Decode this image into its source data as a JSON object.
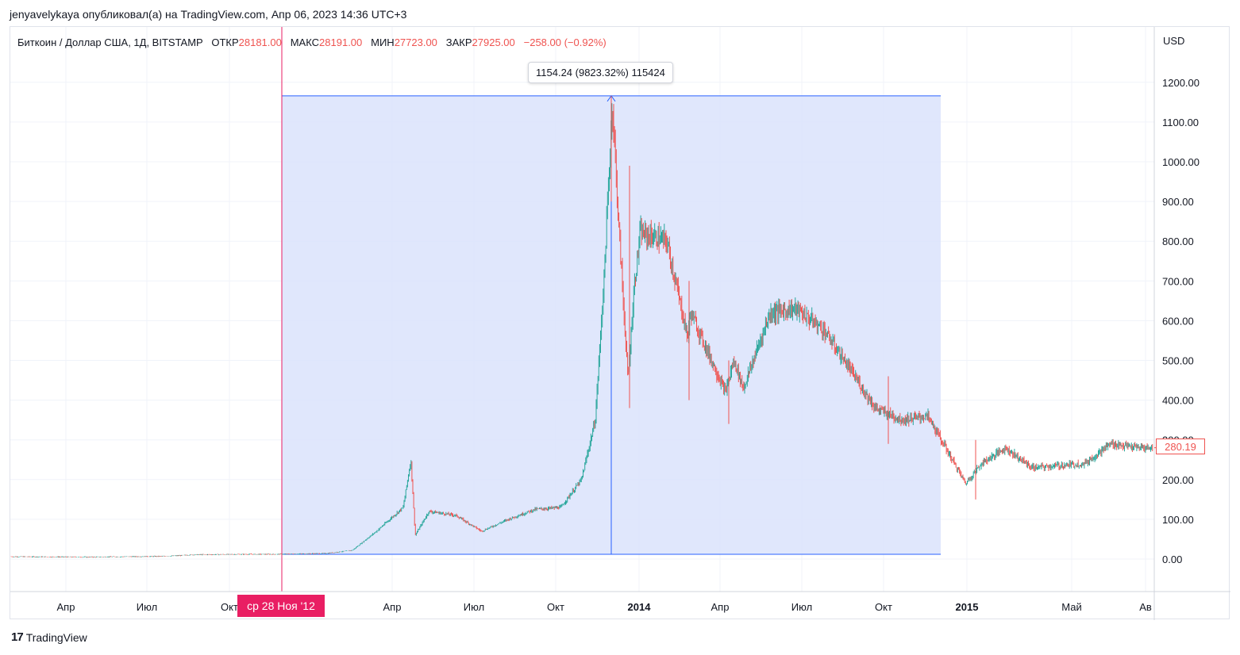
{
  "caption": "jenyavelykaya опубликовал(а) на TradingView.com, Апр 06, 2023 14:36 UTC+3",
  "legend": {
    "symbol": "Биткоин / Доллар США, 1Д, BITSTAMP",
    "open_label": "ОТКР",
    "open_value": "28181.00",
    "high_label": "МАКС",
    "high_value": "28191.00",
    "low_label": "МИН",
    "low_value": "27723.00",
    "close_label": "ЗАКР",
    "close_value": "27925.00",
    "change": "−258.00 (−0.92%)"
  },
  "measure_label": "1154.24 (9823.32%) 115424",
  "date_badge": "ср 28 Ноя '12",
  "price_badge": "280.19",
  "currency": "USD",
  "footer": {
    "logo_mark": "17",
    "logo_text": "TradingView"
  },
  "colors": {
    "up": "#26a69a",
    "down": "#ef5350",
    "range_fill": "#dbe3fb",
    "range_border": "#2962ff",
    "crosshair": "#e91e63"
  },
  "chart_data": {
    "type": "candlestick",
    "title": "Биткоин / Доллар США, 1Д, BITSTAMP",
    "ylabel": "USD",
    "ylim": [
      -40,
      1340
    ],
    "y_ticks": [
      "0.00",
      "100.00",
      "200.00",
      "300.00",
      "400.00",
      "500.00",
      "600.00",
      "700.00",
      "800.00",
      "900.00",
      "1000.00",
      "1100.00",
      "1200.00"
    ],
    "x_ticks": [
      {
        "label": "Апр",
        "bold": false
      },
      {
        "label": "Июл",
        "bold": false
      },
      {
        "label": "Окт",
        "bold": false
      },
      {
        "label": "Апр",
        "bold": false
      },
      {
        "label": "Июл",
        "bold": false
      },
      {
        "label": "Окт",
        "bold": false
      },
      {
        "label": "2014",
        "bold": true
      },
      {
        "label": "Апр",
        "bold": false
      },
      {
        "label": "Июл",
        "bold": false
      },
      {
        "label": "Окт",
        "bold": false
      },
      {
        "label": "2015",
        "bold": true
      },
      {
        "label": "Май",
        "bold": false
      },
      {
        "label": "Ав",
        "bold": false
      }
    ],
    "price_path": [
      [
        "2012-01",
        6
      ],
      [
        "2012-04",
        5
      ],
      [
        "2012-07",
        7
      ],
      [
        "2012-08",
        11
      ],
      [
        "2012-10",
        12
      ],
      [
        "2012-11",
        12
      ],
      [
        "2013-01",
        14
      ],
      [
        "2013-02",
        22
      ],
      [
        "2013-03",
        70
      ],
      [
        "2013-04-01",
        130
      ],
      [
        "2013-04-10",
        250
      ],
      [
        "2013-04-15",
        60
      ],
      [
        "2013-05",
        120
      ],
      [
        "2013-06",
        110
      ],
      [
        "2013-07",
        70
      ],
      [
        "2013-08",
        100
      ],
      [
        "2013-09",
        125
      ],
      [
        "2013-10",
        130
      ],
      [
        "2013-10-25",
        200
      ],
      [
        "2013-11-10",
        350
      ],
      [
        "2013-11-20",
        700
      ],
      [
        "2013-11-30",
        1150
      ],
      [
        "2013-12-07",
        850
      ],
      [
        "2013-12-18",
        450
      ],
      [
        "2013-12-25",
        680
      ],
      [
        "2014-01",
        820
      ],
      [
        "2014-02",
        800
      ],
      [
        "2014-02-25",
        560
      ],
      [
        "2014-03",
        620
      ],
      [
        "2014-04-10",
        420
      ],
      [
        "2014-04-20",
        500
      ],
      [
        "2014-05",
        430
      ],
      [
        "2014-06",
        620
      ],
      [
        "2014-07",
        630
      ],
      [
        "2014-08",
        580
      ],
      [
        "2014-09",
        480
      ],
      [
        "2014-10",
        380
      ],
      [
        "2014-11",
        350
      ],
      [
        "2014-12",
        360
      ],
      [
        "2015-01-14",
        190
      ],
      [
        "2015-02",
        240
      ],
      [
        "2015-03",
        280
      ],
      [
        "2015-04",
        230
      ],
      [
        "2015-05",
        235
      ],
      [
        "2015-06",
        240
      ],
      [
        "2015-07",
        290
      ],
      [
        "2015-08",
        280
      ]
    ],
    "measured_range": {
      "from": "2012-11-28",
      "to": "2013-11-30",
      "low": 12,
      "high": 1166,
      "change": "1154.24",
      "percent": "9823.32%",
      "bars": "115424"
    },
    "last_price": 280.19,
    "grid": true
  }
}
